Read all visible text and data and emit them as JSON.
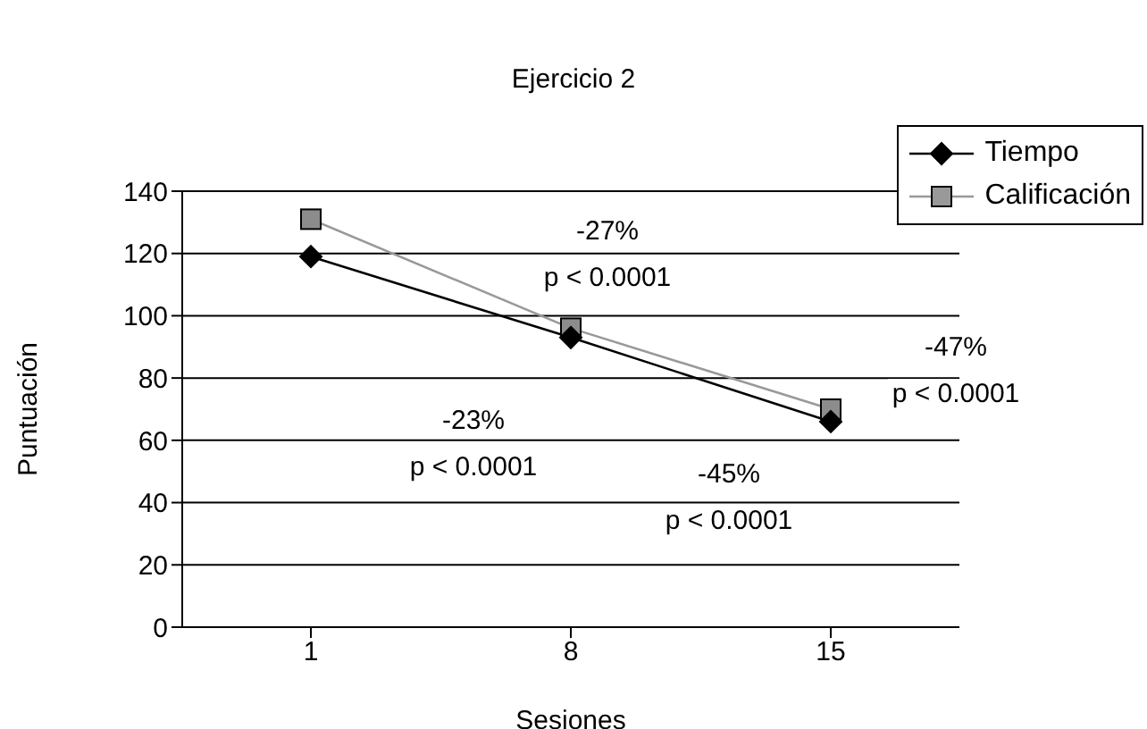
{
  "chart_data": {
    "type": "line",
    "title": "Ejercicio 2",
    "xlabel": "Sesiones",
    "ylabel": "Puntuación",
    "categories": [
      "1",
      "8",
      "15"
    ],
    "series": [
      {
        "name": "Tiempo",
        "color": "#000000",
        "values": [
          119,
          93,
          66
        ],
        "marker": "diamond"
      },
      {
        "name": "Calificación",
        "color": "#999999",
        "values": [
          131,
          96,
          70
        ],
        "marker": "square"
      }
    ],
    "ylim": [
      0,
      140
    ],
    "yticks": [
      0,
      20,
      40,
      60,
      80,
      100,
      120,
      140
    ],
    "grid": "y",
    "legend": "top right",
    "line_style": "solid",
    "annotations": [
      "-27%\np < 0.0001",
      "-47%\np < 0.0001",
      "-23%\np < 0.0001",
      "-45%\np < 0.0001"
    ]
  }
}
